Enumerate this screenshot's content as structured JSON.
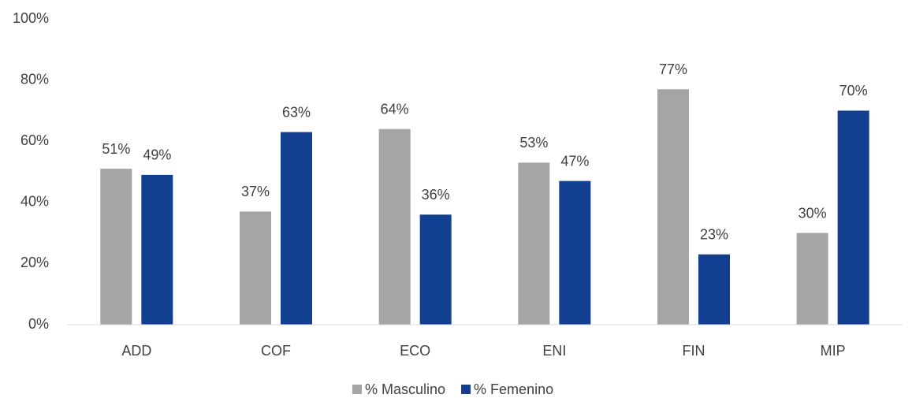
{
  "chart_data": {
    "type": "bar",
    "categories": [
      "ADD",
      "COF",
      "ECO",
      "ENI",
      "FIN",
      "MIP"
    ],
    "series": [
      {
        "name": "% Masculino",
        "color": "#a5a5a5",
        "values": [
          51,
          37,
          64,
          53,
          77,
          30
        ],
        "value_labels": [
          "51%",
          "37%",
          "64%",
          "53%",
          "77%",
          "30%"
        ]
      },
      {
        "name": "% Femenino",
        "color": "#133f91",
        "values": [
          49,
          63,
          36,
          47,
          23,
          70
        ],
        "value_labels": [
          "49%",
          "63%",
          "36%",
          "47%",
          "23%",
          "70%"
        ]
      }
    ],
    "ylim": [
      0,
      100
    ],
    "yticks": [
      {
        "value": 0,
        "label": "0%"
      },
      {
        "value": 20,
        "label": "20%"
      },
      {
        "value": 40,
        "label": "40%"
      },
      {
        "value": 60,
        "label": "60%"
      },
      {
        "value": 80,
        "label": "80%"
      },
      {
        "value": 100,
        "label": "100%"
      }
    ],
    "grid": false,
    "legend": "bottom"
  }
}
